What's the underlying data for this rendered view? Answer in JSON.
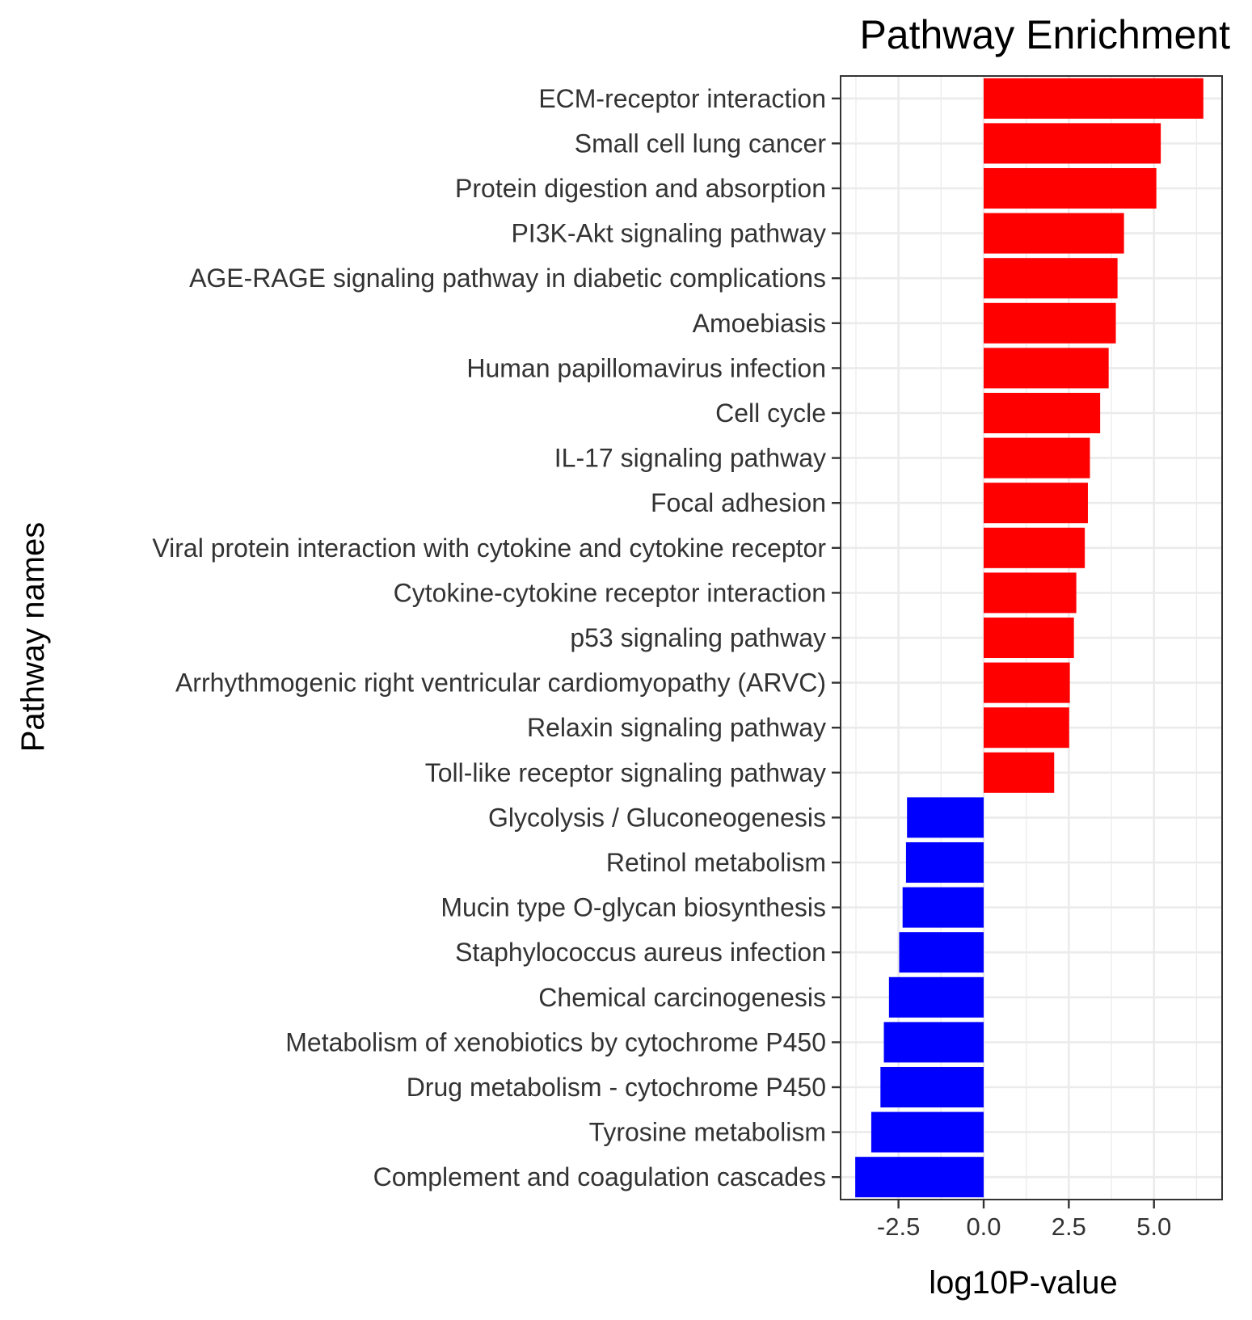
{
  "chart_data": {
    "type": "bar",
    "orientation": "horizontal",
    "title": "Pathway Enrichment",
    "xlabel": "log10P-value",
    "ylabel": "Pathway names",
    "xlim": [
      -4.2,
      7.0
    ],
    "xticks": [
      "-2.5",
      "0.0",
      "2.5",
      "5.0"
    ],
    "xtick_values": [
      -2.5,
      0.0,
      2.5,
      5.0
    ],
    "grid": true,
    "legend": "none",
    "colors": {
      "positive": "#ff0000",
      "negative": "#0000ff"
    },
    "categories": [
      "ECM-receptor interaction",
      "Small cell lung cancer",
      "Protein digestion and absorption",
      "PI3K-Akt signaling pathway",
      "AGE-RAGE signaling pathway in diabetic complications",
      "Amoebiasis",
      "Human papillomavirus infection",
      "Cell cycle",
      "IL-17 signaling pathway",
      "Focal adhesion",
      "Viral protein interaction with cytokine and cytokine receptor",
      "Cytokine-cytokine receptor interaction",
      "p53 signaling pathway",
      "Arrhythmogenic right ventricular cardiomyopathy (ARVC)",
      "Relaxin signaling pathway",
      "Toll-like receptor signaling pathway",
      "Glycolysis / Gluconeogenesis",
      "Retinol metabolism",
      "Mucin type O-glycan biosynthesis",
      "Staphylococcus aureus infection",
      "Chemical carcinogenesis",
      "Metabolism of xenobiotics by cytochrome P450",
      "Drug metabolism - cytochrome P450",
      "Tyrosine metabolism",
      "Complement and coagulation cascades"
    ],
    "values": [
      6.45,
      5.2,
      5.07,
      4.12,
      3.93,
      3.88,
      3.67,
      3.42,
      3.12,
      3.06,
      2.97,
      2.72,
      2.65,
      2.53,
      2.51,
      2.07,
      -2.25,
      -2.28,
      -2.38,
      -2.48,
      -2.78,
      -2.93,
      -3.03,
      -3.3,
      -3.77
    ]
  }
}
